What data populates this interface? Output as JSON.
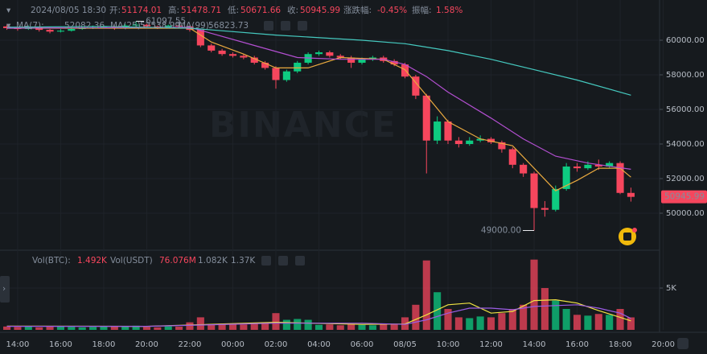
{
  "chart_data": {
    "type": "candlestick",
    "header": {
      "time": "2024/08/05 18:30",
      "open_label": "开:",
      "high_label": "高:",
      "low_label": "低:",
      "close_label": "收:",
      "change_label": "涨跌幅:",
      "change": "-0.45%",
      "amplitude_label": "振幅:",
      "amplitude": "1.58%"
    },
    "watermark": "BINANCE",
    "up_color": "#0ecb81",
    "down_color": "#f6465d",
    "x": [
      13.5,
      14,
      14.5,
      15,
      15.5,
      16,
      16.5,
      17,
      17.5,
      18,
      18.5,
      19,
      19.5,
      20,
      20.5,
      21,
      21.5,
      22,
      22.5,
      23,
      23.5,
      24,
      24.5,
      25,
      25.5,
      26,
      26.5,
      27,
      27.5,
      28,
      28.5,
      29,
      29.5,
      30,
      30.5,
      31,
      31.5,
      32,
      32.5,
      33,
      33.5,
      34,
      34.5,
      35,
      35.5,
      36,
      36.5,
      37,
      37.5,
      38,
      38.5,
      39,
      39.5,
      40,
      40.5,
      41,
      41.5,
      42,
      42.5
    ],
    "candles": [
      [
        60800,
        60900,
        60600,
        60700
      ],
      [
        60700,
        60800,
        60550,
        60650
      ],
      [
        60650,
        60850,
        60600,
        60750
      ],
      [
        60750,
        60800,
        60500,
        60600
      ],
      [
        60600,
        60650,
        60400,
        60500
      ],
      [
        60500,
        60650,
        60450,
        60550
      ],
      [
        60550,
        60750,
        60500,
        60650
      ],
      [
        60650,
        60800,
        60600,
        60700
      ],
      [
        60700,
        60850,
        60650,
        60750
      ],
      [
        60750,
        60900,
        60700,
        60800
      ],
      [
        60800,
        60850,
        60600,
        60700
      ],
      [
        60700,
        60950,
        60650,
        60850
      ],
      [
        60850,
        61097.55,
        60800,
        60900
      ],
      [
        60900,
        60950,
        60700,
        60800
      ],
      [
        60800,
        60850,
        60650,
        60750
      ],
      [
        60750,
        60900,
        60700,
        60850
      ],
      [
        60850,
        60900,
        60700,
        60800
      ],
      [
        60800,
        60850,
        60500,
        60600
      ],
      [
        60600,
        60650,
        59600,
        59700
      ],
      [
        59700,
        59800,
        59300,
        59400
      ],
      [
        59400,
        59500,
        59100,
        59200
      ],
      [
        59200,
        59300,
        59000,
        59100
      ],
      [
        59100,
        59200,
        58900,
        59000
      ],
      [
        59000,
        59100,
        58600,
        58700
      ],
      [
        58700,
        58800,
        58300,
        58400
      ],
      [
        58400,
        58500,
        57200,
        57700
      ],
      [
        57700,
        58300,
        57600,
        58200
      ],
      [
        58200,
        58800,
        58100,
        58700
      ],
      [
        58700,
        59300,
        58600,
        59200
      ],
      [
        59200,
        59400,
        59100,
        59300
      ],
      [
        59300,
        59400,
        59000,
        59100
      ],
      [
        59100,
        59200,
        58900,
        59000
      ],
      [
        59000,
        59100,
        58400,
        58700
      ],
      [
        58700,
        59000,
        58600,
        58900
      ],
      [
        58900,
        59100,
        58800,
        59000
      ],
      [
        59000,
        59100,
        58700,
        58800
      ],
      [
        58800,
        58900,
        58500,
        58600
      ],
      [
        58600,
        58700,
        57800,
        57900
      ],
      [
        57900,
        58000,
        56600,
        56800
      ],
      [
        56800,
        56900,
        52300,
        54200
      ],
      [
        54200,
        55600,
        54000,
        55300
      ],
      [
        55300,
        55400,
        54000,
        54200
      ],
      [
        54200,
        54400,
        53800,
        54000
      ],
      [
        54000,
        54400,
        53900,
        54200
      ],
      [
        54200,
        54500,
        54100,
        54300
      ],
      [
        54300,
        54400,
        54000,
        54100
      ],
      [
        54100,
        54200,
        53500,
        53700
      ],
      [
        53700,
        53800,
        52600,
        52800
      ],
      [
        52800,
        52900,
        52100,
        52300
      ],
      [
        52300,
        52400,
        49000,
        50300
      ],
      [
        50300,
        50700,
        49800,
        50200
      ],
      [
        50200,
        51600,
        50100,
        51400
      ],
      [
        51400,
        52900,
        51300,
        52700
      ],
      [
        52700,
        52900,
        52400,
        52600
      ],
      [
        52600,
        53000,
        52500,
        52800
      ],
      [
        52800,
        53100,
        52500,
        52700
      ],
      [
        52700,
        53000,
        52600,
        52900
      ],
      [
        52900,
        53000,
        51100,
        51174.01
      ],
      [
        51174.01,
        51478.71,
        50671.66,
        50945.99
      ]
    ],
    "low_marker_label": "49000.00",
    "xlim": [
      13.18,
      43.83
    ],
    "xticks": [
      {
        "value": 14,
        "label": "14:00"
      },
      {
        "value": 16,
        "label": "16:00"
      },
      {
        "value": 18,
        "label": "18:00"
      },
      {
        "value": 20,
        "label": "20:00"
      },
      {
        "value": 22,
        "label": "22:00"
      },
      {
        "value": 24,
        "label": "00:00"
      },
      {
        "value": 26,
        "label": "02:00"
      },
      {
        "value": 28,
        "label": "04:00"
      },
      {
        "value": 30,
        "label": "06:00"
      },
      {
        "value": 32,
        "label": "08/05"
      },
      {
        "value": 34,
        "label": "10:00"
      },
      {
        "value": 36,
        "label": "12:00"
      },
      {
        "value": 38,
        "label": "14:00"
      },
      {
        "value": 40,
        "label": "16:00"
      },
      {
        "value": 42,
        "label": "18:00"
      },
      {
        "value": 44,
        "label": "20:00"
      }
    ],
    "ylim": [
      48140,
      62326
    ],
    "yticks": [
      {
        "value": 50000,
        "label": "50000.00"
      },
      {
        "value": 52000,
        "label": "52000.00"
      },
      {
        "value": 54000,
        "label": "54000.00"
      },
      {
        "value": 56000,
        "label": "56000.00"
      },
      {
        "value": 58000,
        "label": "58000.00"
      },
      {
        "value": 60000,
        "label": "60000.00"
      }
    ],
    "grid": true,
    "ma_series": [
      {
        "name": "MA(7):",
        "color": "#e9a93f",
        "x": [
          13.5,
          22,
          23,
          24.5,
          26,
          27.5,
          29,
          31,
          32,
          33,
          34,
          35.5,
          37,
          38,
          39,
          40,
          41,
          42,
          42.5
        ],
        "values": [
          60700,
          60700,
          59900,
          59200,
          58400,
          58400,
          59000,
          58900,
          58300,
          56800,
          55300,
          54300,
          53900,
          52600,
          51300,
          51900,
          52600,
          52600,
          52082.36
        ]
      },
      {
        "name": "MA(25):",
        "color": "#b34fd1",
        "x": [
          13.5,
          22,
          23,
          25,
          27,
          29,
          31,
          32,
          33,
          34,
          36,
          37.5,
          39,
          40.5,
          42.5
        ],
        "values": [
          60700,
          60750,
          60400,
          59700,
          59000,
          58900,
          58900,
          58600,
          57900,
          57000,
          55500,
          54300,
          53300,
          52900,
          52538.99
        ]
      },
      {
        "name": "MA(99):",
        "color": "#45c9bf",
        "x": [
          13.5,
          18,
          22,
          26,
          30,
          32,
          34,
          36,
          38,
          40,
          42.5
        ],
        "values": [
          60750,
          60800,
          60700,
          60300,
          60000,
          59800,
          59400,
          58900,
          58300,
          57700,
          56823.73
        ]
      }
    ],
    "volume": {
      "ylim": [
        0,
        9330
      ],
      "yticks": [
        {
          "value": 5000,
          "label": "5K"
        }
      ],
      "series": [
        {
          "name": "Vol(BTC):",
          "last_label": "1.492K",
          "values": [
            400,
            350,
            450,
            300,
            380,
            420,
            360,
            300,
            350,
            400,
            380,
            450,
            500,
            350,
            300,
            420,
            380,
            900,
            1500,
            700,
            750,
            700,
            650,
            800,
            900,
            2000,
            1200,
            1300,
            1200,
            600,
            650,
            550,
            700,
            600,
            550,
            650,
            700,
            1500,
            3000,
            8300,
            4500,
            2500,
            1500,
            1400,
            1600,
            1500,
            2000,
            2500,
            3000,
            8400,
            5000,
            3500,
            2500,
            1800,
            1700,
            1900,
            1800,
            2500,
            1492
          ]
        }
      ],
      "usdt": {
        "name": "Vol(USDT)",
        "last_label": "76.076M"
      },
      "ma_series": [
        {
          "color": "#f0e442",
          "last_label": "1.082K",
          "x": [
            13.5,
            20,
            26,
            30,
            32,
            33,
            34,
            35,
            36,
            37,
            38,
            39,
            40,
            41,
            42,
            42.5
          ],
          "values": [
            450,
            420,
            900,
            650,
            700,
            1800,
            3000,
            3200,
            2000,
            2200,
            3500,
            3600,
            3200,
            2300,
            1500,
            1082
          ]
        },
        {
          "color": "#9b5de5",
          "last_label": "1.37K",
          "x": [
            13.5,
            20,
            26,
            30,
            32,
            33,
            34,
            35,
            36,
            37,
            38,
            39,
            40,
            41,
            42,
            42.5
          ],
          "values": [
            420,
            420,
            800,
            800,
            650,
            1200,
            2000,
            2600,
            2600,
            2400,
            2800,
            2900,
            3000,
            2600,
            2000,
            1370
          ]
        }
      ]
    }
  }
}
